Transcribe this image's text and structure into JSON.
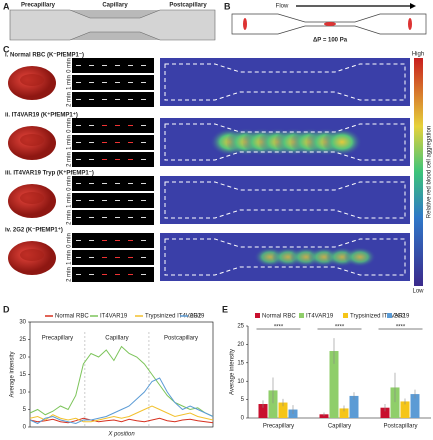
{
  "panels": {
    "A": {
      "label": "A",
      "regions": [
        "Precapillary",
        "Capillary",
        "Postcapillary"
      ]
    },
    "B": {
      "label": "B",
      "flow": "Flow",
      "pressure": "ΔP = 100 Pa"
    },
    "C": {
      "label": "C",
      "rows": [
        "i. Normal RBC (K⁻PfEMP1⁻)",
        "ii. IT4VAR19 (K⁺PfEMP1⁺)",
        "iii. IT4VAR19 Tryp (K⁺PfEMP1⁻)",
        "iv. 2G2 (K⁻PfEMP1⁺)"
      ],
      "time_labels": [
        "0 min",
        "1 min",
        "2 min"
      ],
      "colorbar": {
        "high": "High",
        "low": "Low",
        "title": "Relative red blood cell aggregation"
      }
    }
  },
  "chart_data": [
    {
      "type": "line",
      "panel": "D",
      "ylabel": "Average intensity",
      "xlabel": "X position",
      "regions": [
        "Precapillary",
        "Capillary",
        "Postcapillary"
      ],
      "ylim": [
        0,
        30
      ],
      "yticks": [
        0,
        5,
        10,
        15,
        20,
        25,
        30
      ],
      "series": [
        {
          "name": "Normal RBC",
          "color": "#d7301f",
          "values": [
            2,
            1.5,
            1.8,
            2.2,
            1.5,
            1.2,
            1.8,
            2.5,
            2,
            1.5,
            1.8,
            2,
            1.5,
            2.2,
            1.8,
            1.5,
            2,
            2.5,
            1.8,
            1.5,
            2,
            2.2,
            1.8,
            1.5,
            1.2
          ]
        },
        {
          "name": "IT4VAR19",
          "color": "#7cc45a",
          "values": [
            4,
            5,
            3.5,
            4.5,
            6,
            5,
            9,
            18,
            21,
            20,
            22,
            19,
            23,
            21,
            20,
            18,
            15,
            12,
            9,
            7,
            6,
            5,
            5.5,
            4,
            3
          ]
        },
        {
          "name": "Trypsinized IT4VAR19",
          "color": "#f2c12e",
          "values": [
            2.5,
            3,
            2,
            3.5,
            2.5,
            2,
            2.5,
            1.5,
            1.5,
            2,
            2.5,
            3,
            2.5,
            3,
            4,
            5,
            6,
            5,
            4,
            3,
            3.5,
            4,
            3,
            2.5,
            2
          ]
        },
        {
          "name": "2G2",
          "color": "#5b9bd5",
          "values": [
            2,
            1,
            2.5,
            3,
            2,
            1.5,
            1,
            2,
            2,
            2.5,
            3,
            4,
            5,
            6,
            8,
            10,
            13,
            14,
            10,
            7,
            5,
            6,
            5,
            4,
            3
          ]
        }
      ]
    },
    {
      "type": "bar",
      "panel": "E",
      "ylabel": "Average intensity",
      "categories": [
        "Precapillary",
        "Capillary",
        "Postcapillary"
      ],
      "ylim": [
        0,
        25
      ],
      "yticks": [
        0,
        5,
        10,
        15,
        20,
        25
      ],
      "significance": [
        "****",
        "****",
        "****"
      ],
      "series": [
        {
          "name": "Normal RBC",
          "color": "#c8102e",
          "values": [
            3.8,
            1.0,
            2.8
          ],
          "errors": [
            1.0,
            0.5,
            1.0
          ]
        },
        {
          "name": "IT4VAR19",
          "color": "#8fce6a",
          "values": [
            7.5,
            18.2,
            8.3
          ],
          "errors": [
            3.5,
            3.5,
            4.0
          ]
        },
        {
          "name": "Trypsinized IT4VAR19",
          "color": "#f5c518",
          "values": [
            4.2,
            2.6,
            4.5
          ],
          "errors": [
            1.0,
            0.8,
            0.8
          ]
        },
        {
          "name": "2G2",
          "color": "#5b9bd5",
          "values": [
            2.3,
            6.0,
            6.5
          ],
          "errors": [
            1.2,
            1.0,
            1.2
          ]
        }
      ]
    }
  ]
}
